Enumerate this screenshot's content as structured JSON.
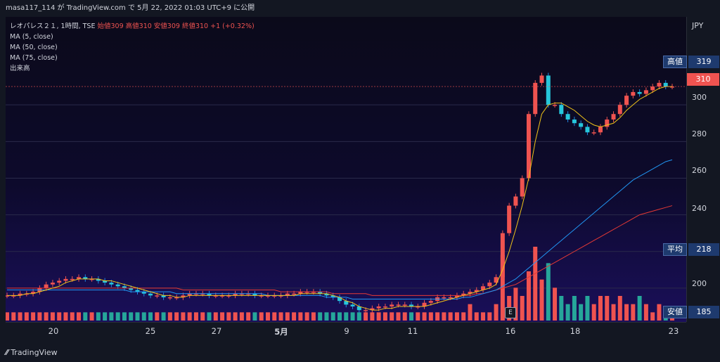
{
  "header": {
    "attribution": "masa117_114 が TradingView.com で 5月 22, 2022 01:03 UTC+9 に公開"
  },
  "legend": {
    "symbol": "レオパレス２１, 1時間, TSE",
    "ohlc": "始値309 高値310 安値309 終値310 +1 (+0.32%)",
    "ma5": "MA (5, close)",
    "ma50": "MA (50, close)",
    "ma75": "MA (75, close)",
    "volume": "出来高"
  },
  "axis": {
    "currency": "JPY",
    "ticks": [
      "300",
      "280",
      "260",
      "240",
      "200"
    ]
  },
  "tags": {
    "high_label": "高値",
    "high_value": "319",
    "last_value": "310",
    "avg_label": "平均",
    "avg_value": "218",
    "low_label": "安値",
    "low_value": "185"
  },
  "xaxis": {
    "labels": [
      "20",
      "25",
      "27",
      "5月",
      "9",
      "11",
      "16",
      "18",
      "23"
    ]
  },
  "badges": {
    "earnings": "E"
  },
  "footer": {
    "brand": "TradingView"
  },
  "colors": {
    "up": "#26a69a",
    "up_bar": "#1e88e5",
    "down": "#ef5350",
    "ma5": "#f0c419",
    "ma50": "#2196f3",
    "ma75": "#e53935"
  },
  "chart_data": {
    "type": "line",
    "ylim": [
      185,
      325
    ],
    "x_labels": [
      "20",
      "25",
      "27",
      "5月",
      "9",
      "11",
      "16",
      "18",
      "23"
    ],
    "closes": [
      196,
      196,
      197,
      197,
      198,
      200,
      202,
      203,
      204,
      205,
      205,
      206,
      205,
      205,
      204,
      203,
      202,
      201,
      200,
      199,
      198,
      197,
      196,
      196,
      195,
      195,
      195,
      196,
      197,
      197,
      197,
      196,
      196,
      196,
      196,
      197,
      197,
      197,
      196,
      196,
      196,
      196,
      196,
      197,
      197,
      198,
      198,
      198,
      197,
      196,
      195,
      193,
      191,
      190,
      188,
      188,
      189,
      190,
      190,
      191,
      191,
      191,
      190,
      190,
      192,
      193,
      195,
      195,
      195,
      196,
      197,
      198,
      199,
      201,
      203,
      206,
      230,
      245,
      250,
      260,
      295,
      312,
      316,
      300,
      300,
      295,
      292,
      290,
      288,
      285,
      285,
      288,
      292,
      295,
      300,
      305,
      307,
      306,
      308,
      310,
      312,
      310,
      310
    ],
    "ma5": [
      196,
      196,
      196,
      197,
      197,
      198,
      199,
      200,
      201,
      203,
      204,
      205,
      205,
      205,
      205,
      204,
      204,
      203,
      202,
      201,
      200,
      199,
      198,
      197,
      196,
      196,
      195,
      195,
      196,
      196,
      196,
      196,
      196,
      196,
      196,
      196,
      196,
      196,
      196,
      196,
      196,
      196,
      196,
      196,
      196,
      197,
      197,
      197,
      197,
      197,
      196,
      195,
      193,
      192,
      190,
      189,
      188,
      188,
      189,
      189,
      190,
      190,
      190,
      190,
      190,
      191,
      192,
      193,
      194,
      195,
      196,
      197,
      198,
      199,
      200,
      202,
      210,
      220,
      232,
      245,
      260,
      280,
      295,
      300,
      301,
      301,
      299,
      297,
      294,
      291,
      289,
      288,
      289,
      290,
      293,
      297,
      300,
      303,
      305,
      307,
      309,
      310,
      310
    ],
    "ma50": [
      199,
      199,
      199,
      199,
      199,
      199,
      199,
      199,
      199,
      199,
      199,
      199,
      199,
      199,
      199,
      199,
      199,
      199,
      199,
      198,
      198,
      198,
      198,
      198,
      198,
      198,
      197,
      197,
      197,
      197,
      197,
      197,
      197,
      197,
      197,
      197,
      197,
      197,
      197,
      197,
      196,
      196,
      196,
      196,
      196,
      196,
      196,
      196,
      196,
      195,
      195,
      195,
      195,
      194,
      194,
      194,
      194,
      194,
      194,
      194,
      194,
      194,
      194,
      194,
      194,
      194,
      194,
      194,
      194,
      194,
      195,
      195,
      196,
      197,
      198,
      199,
      201,
      203,
      205,
      208,
      211,
      214,
      217,
      220,
      223,
      226,
      229,
      232,
      235,
      238,
      241,
      244,
      247,
      250,
      253,
      256,
      259,
      261,
      263,
      265,
      267,
      269,
      270
    ],
    "ma75": [
      200,
      200,
      200,
      200,
      200,
      200,
      200,
      200,
      200,
      200,
      200,
      200,
      200,
      200,
      200,
      200,
      200,
      200,
      200,
      200,
      200,
      200,
      200,
      200,
      200,
      200,
      200,
      199,
      199,
      199,
      199,
      199,
      199,
      199,
      199,
      199,
      199,
      199,
      199,
      199,
      199,
      199,
      198,
      198,
      198,
      198,
      198,
      198,
      198,
      198,
      197,
      197,
      197,
      197,
      197,
      197,
      196,
      196,
      196,
      196,
      196,
      196,
      196,
      196,
      196,
      196,
      196,
      196,
      196,
      196,
      196,
      196,
      197,
      197,
      198,
      199,
      200,
      201,
      202,
      204,
      206,
      208,
      210,
      212,
      214,
      216,
      218,
      220,
      222,
      224,
      226,
      228,
      230,
      232,
      234,
      236,
      238,
      240,
      241,
      242,
      243,
      244,
      245
    ],
    "volumes": [
      1,
      1,
      1,
      1,
      1,
      1,
      1,
      1,
      1,
      1,
      1,
      1,
      1,
      1,
      1,
      1,
      1,
      1,
      1,
      1,
      1,
      1,
      1,
      1,
      1,
      1,
      1,
      1,
      1,
      1,
      1,
      1,
      1,
      1,
      1,
      1,
      1,
      1,
      1,
      1,
      1,
      1,
      1,
      1,
      1,
      1,
      1,
      1,
      1,
      1,
      1,
      1,
      1,
      1,
      1,
      1,
      1,
      1,
      1,
      1,
      1,
      1,
      1,
      1,
      1,
      1,
      1,
      1,
      1,
      1,
      1,
      2,
      1,
      1,
      1,
      2,
      8,
      3,
      4,
      3,
      6,
      9,
      5,
      7,
      4,
      3,
      2,
      3,
      2,
      3,
      2,
      3,
      3,
      2,
      3,
      2,
      2,
      3,
      2,
      1,
      2,
      1,
      1
    ]
  }
}
